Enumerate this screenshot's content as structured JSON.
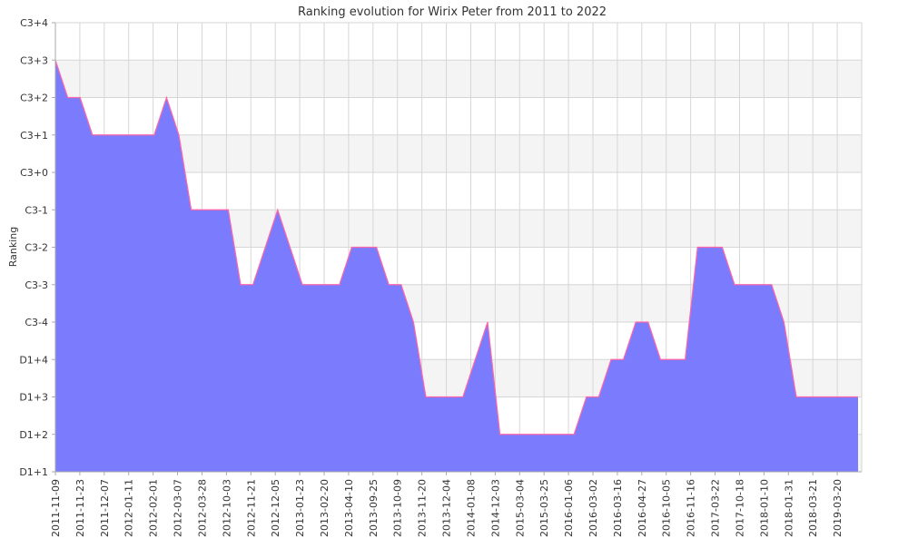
{
  "chart_data": {
    "type": "area",
    "title": "Ranking evolution for Wirix Peter from 2011 to 2022",
    "xlabel": "",
    "ylabel": "Ranking",
    "y_ticks": [
      "D1+1",
      "D1+2",
      "D1+3",
      "D1+4",
      "C3-4",
      "C3-3",
      "C3-2",
      "C3-1",
      "C3+0",
      "C3+1",
      "C3+2",
      "C3+3",
      "C3+4"
    ],
    "x_tick_labels": [
      "2011-11-09",
      "2011-11-23",
      "2011-12-07",
      "2012-01-11",
      "2012-02-01",
      "2012-03-07",
      "2012-03-28",
      "2012-10-03",
      "2012-11-21",
      "2012-12-05",
      "2013-01-23",
      "2013-02-20",
      "2013-04-10",
      "2013-09-25",
      "2013-10-09",
      "2013-11-20",
      "2013-12-04",
      "2014-01-08",
      "2014-12-03",
      "2015-03-04",
      "2015-03-25",
      "2016-01-06",
      "2016-03-02",
      "2016-03-16",
      "2016-04-27",
      "2016-10-05",
      "2016-11-16",
      "2017-03-22",
      "2017-10-18",
      "2018-01-10",
      "2018-01-31",
      "2018-03-21",
      "2019-03-20"
    ],
    "series": [
      {
        "values": [
          11,
          10,
          10,
          9,
          9,
          9,
          9,
          9,
          9,
          10,
          9,
          7,
          7,
          7,
          7,
          5,
          5,
          6,
          7,
          6,
          5,
          5,
          5,
          5,
          6,
          6,
          6,
          5,
          5,
          4,
          2,
          2,
          2,
          2,
          3,
          4,
          1,
          1,
          1,
          1,
          1,
          1,
          1,
          2,
          2,
          3,
          3,
          4,
          4,
          3,
          3,
          3,
          6,
          6,
          6,
          5,
          5,
          5,
          5,
          4,
          2,
          2,
          2,
          2,
          2,
          2
        ]
      }
    ],
    "ylim": [
      "D1+1",
      "C3+4"
    ],
    "grid": true,
    "colors": {
      "fill": "#7b7bfd",
      "line": "#ff66aa",
      "band": "#f4f4f4",
      "grid": "#d6d6d6",
      "axis": "#aaaaaa"
    }
  }
}
